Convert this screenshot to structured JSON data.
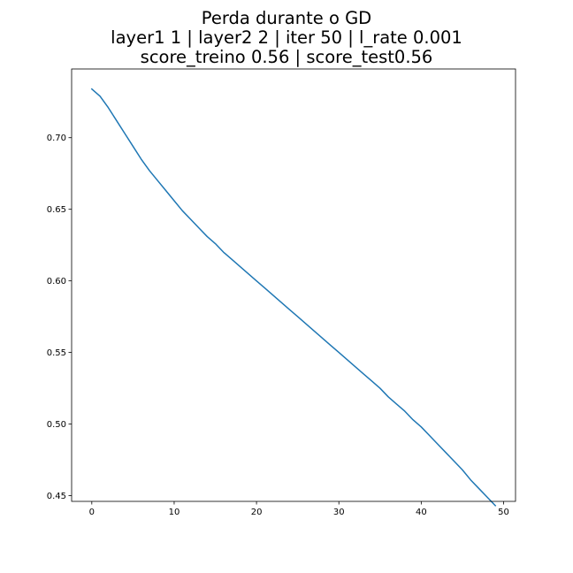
{
  "chart_data": {
    "type": "line",
    "title_lines": [
      "Perda durante o GD",
      "layer1 1 | layer2 2 | iter 50 | l_rate 0.001",
      "score_treino 0.56 | score_test0.56"
    ],
    "xlabel": "",
    "ylabel": "",
    "xlim": [
      -2.45,
      51.45
    ],
    "ylim": [
      0.446,
      0.748
    ],
    "xticks": [
      0,
      10,
      20,
      30,
      40,
      50
    ],
    "yticks": [
      0.45,
      0.5,
      0.55,
      0.6,
      0.65,
      0.7
    ],
    "ytick_labels": [
      "0.45",
      "0.50",
      "0.55",
      "0.60",
      "0.65",
      "0.70"
    ],
    "xtick_labels": [
      "0",
      "10",
      "20",
      "30",
      "40",
      "50"
    ],
    "grid": false,
    "line_color": "#1f77b4",
    "series": [
      {
        "x": [
          0,
          1,
          2,
          3,
          4,
          5,
          6,
          7,
          8,
          9,
          10,
          11,
          12,
          13,
          14,
          15,
          16,
          17,
          18,
          19,
          20,
          21,
          22,
          23,
          24,
          25,
          26,
          27,
          28,
          29,
          30,
          31,
          32,
          33,
          34,
          35,
          36,
          37,
          38,
          39,
          40,
          41,
          42,
          43,
          44,
          45,
          46,
          47,
          48,
          49
        ],
        "values": [
          0.734,
          0.729,
          0.721,
          0.712,
          0.703,
          0.694,
          0.685,
          0.677,
          0.67,
          0.663,
          0.656,
          0.649,
          0.643,
          0.637,
          0.631,
          0.626,
          0.62,
          0.615,
          0.61,
          0.605,
          0.6,
          0.595,
          0.59,
          0.585,
          0.58,
          0.575,
          0.57,
          0.565,
          0.56,
          0.555,
          0.55,
          0.545,
          0.54,
          0.535,
          0.53,
          0.525,
          0.519,
          0.514,
          0.509,
          0.503,
          0.498,
          0.492,
          0.486,
          0.48,
          0.474,
          0.468,
          0.461,
          0.455,
          0.449,
          0.443
        ]
      }
    ]
  }
}
